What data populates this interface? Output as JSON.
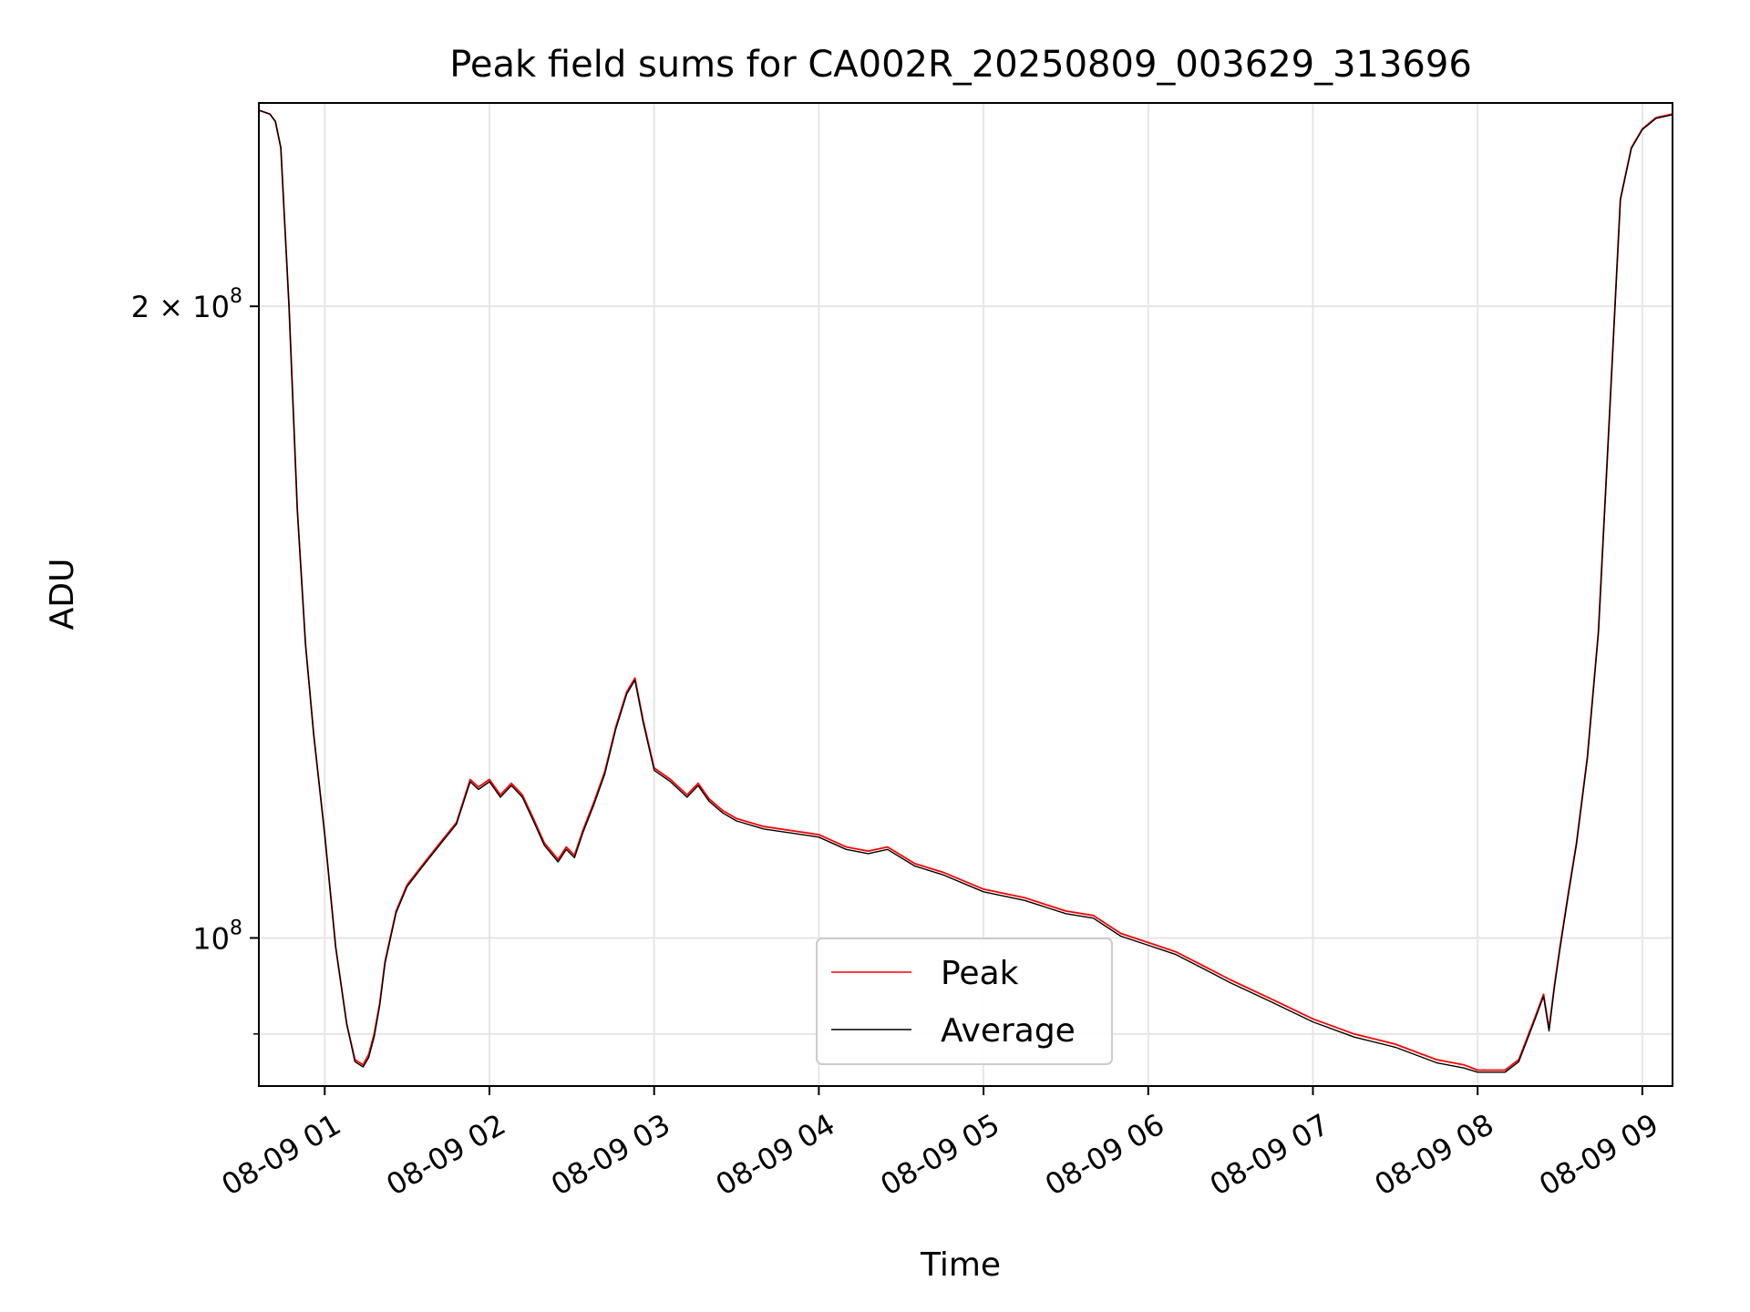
{
  "chart_data": {
    "type": "line",
    "title": "Peak field sums for CA002R_20250809_003629_313696",
    "xlabel": "Time",
    "ylabel": "ADU",
    "x_range": [
      "2025-08-09 00:36",
      "2025-08-09 09:11"
    ],
    "y_scale": "log",
    "y_range": [
      85000000,
      250000000
    ],
    "grid": true,
    "legend_position": "lower-center",
    "x_ticks": [
      {
        "value": "2025-08-09 01:00",
        "label": "08-09 01"
      },
      {
        "value": "2025-08-09 02:00",
        "label": "08-09 02"
      },
      {
        "value": "2025-08-09 03:00",
        "label": "08-09 03"
      },
      {
        "value": "2025-08-09 04:00",
        "label": "08-09 04"
      },
      {
        "value": "2025-08-09 05:00",
        "label": "08-09 05"
      },
      {
        "value": "2025-08-09 06:00",
        "label": "08-09 06"
      },
      {
        "value": "2025-08-09 07:00",
        "label": "08-09 07"
      },
      {
        "value": "2025-08-09 08:00",
        "label": "08-09 08"
      },
      {
        "value": "2025-08-09 09:00",
        "label": "08-09 09"
      }
    ],
    "y_major_ticks": [
      {
        "value": 100000000,
        "base": "10",
        "exp": "8",
        "coef": ""
      },
      {
        "value": 200000000,
        "base": "10",
        "exp": "8",
        "coef": "2 × "
      }
    ],
    "y_minor_grid": [
      90000000
    ],
    "series": [
      {
        "name": "Peak",
        "color": "#ff0000",
        "x": [
          "2025-08-09 00:36",
          "2025-08-09 00:40",
          "2025-08-09 00:42",
          "2025-08-09 00:44",
          "2025-08-09 00:47",
          "2025-08-09 00:50",
          "2025-08-09 00:53",
          "2025-08-09 00:56",
          "2025-08-09 01:00",
          "2025-08-09 01:04",
          "2025-08-09 01:08",
          "2025-08-09 01:11",
          "2025-08-09 01:14",
          "2025-08-09 01:16",
          "2025-08-09 01:18",
          "2025-08-09 01:20",
          "2025-08-09 01:22",
          "2025-08-09 01:26",
          "2025-08-09 01:30",
          "2025-08-09 01:36",
          "2025-08-09 01:42",
          "2025-08-09 01:48",
          "2025-08-09 01:53",
          "2025-08-09 01:56",
          "2025-08-09 02:00",
          "2025-08-09 02:04",
          "2025-08-09 02:08",
          "2025-08-09 02:12",
          "2025-08-09 02:16",
          "2025-08-09 02:20",
          "2025-08-09 02:25",
          "2025-08-09 02:28",
          "2025-08-09 02:31",
          "2025-08-09 02:34",
          "2025-08-09 02:38",
          "2025-08-09 02:42",
          "2025-08-09 02:46",
          "2025-08-09 02:50",
          "2025-08-09 02:53",
          "2025-08-09 02:56",
          "2025-08-09 03:00",
          "2025-08-09 03:06",
          "2025-08-09 03:12",
          "2025-08-09 03:16",
          "2025-08-09 03:20",
          "2025-08-09 03:25",
          "2025-08-09 03:30",
          "2025-08-09 03:40",
          "2025-08-09 03:50",
          "2025-08-09 04:00",
          "2025-08-09 04:10",
          "2025-08-09 04:18",
          "2025-08-09 04:25",
          "2025-08-09 04:35",
          "2025-08-09 04:45",
          "2025-08-09 05:00",
          "2025-08-09 05:15",
          "2025-08-09 05:30",
          "2025-08-09 05:40",
          "2025-08-09 05:50",
          "2025-08-09 06:00",
          "2025-08-09 06:10",
          "2025-08-09 06:20",
          "2025-08-09 06:30",
          "2025-08-09 06:45",
          "2025-08-09 07:00",
          "2025-08-09 07:15",
          "2025-08-09 07:30",
          "2025-08-09 07:45",
          "2025-08-09 07:55",
          "2025-08-09 08:00",
          "2025-08-09 08:05",
          "2025-08-09 08:10",
          "2025-08-09 08:15",
          "2025-08-09 08:20",
          "2025-08-09 08:24",
          "2025-08-09 08:26",
          "2025-08-09 08:28",
          "2025-08-09 08:30",
          "2025-08-09 08:33",
          "2025-08-09 08:36",
          "2025-08-09 08:40",
          "2025-08-09 08:44",
          "2025-08-09 08:48",
          "2025-08-09 08:52",
          "2025-08-09 08:56",
          "2025-08-09 09:00",
          "2025-08-09 09:05",
          "2025-08-09 09:11"
        ],
        "y": [
          248000000,
          247000000,
          245000000,
          238000000,
          200000000,
          160000000,
          138000000,
          125000000,
          112000000,
          99000000,
          91000000,
          87500000,
          87000000,
          88000000,
          90000000,
          93000000,
          97500000,
          103000000,
          106000000,
          108500000,
          111000000,
          113500000,
          119000000,
          118000000,
          119000000,
          117000000,
          118500000,
          117000000,
          114000000,
          111000000,
          109000000,
          110500000,
          109500000,
          112500000,
          116000000,
          120000000,
          126000000,
          131000000,
          133000000,
          127000000,
          120500000,
          119000000,
          117000000,
          118500000,
          116500000,
          115000000,
          114000000,
          113000000,
          112500000,
          112000000,
          110500000,
          110000000,
          110500000,
          108500000,
          107500000,
          105500000,
          104500000,
          103000000,
          102500000,
          100500000,
          99500000,
          98500000,
          97000000,
          95500000,
          93500000,
          91500000,
          90000000,
          89000000,
          87500000,
          87000000,
          86500000,
          86500000,
          86500000,
          87500000,
          91000000,
          94000000,
          90500000,
          95000000,
          99000000,
          105000000,
          111000000,
          122000000,
          140000000,
          177000000,
          225000000,
          238000000,
          243000000,
          246000000,
          247000000
        ]
      },
      {
        "name": "Average",
        "color": "#000000",
        "x": [
          "2025-08-09 00:36",
          "2025-08-09 00:40",
          "2025-08-09 00:42",
          "2025-08-09 00:44",
          "2025-08-09 00:47",
          "2025-08-09 00:50",
          "2025-08-09 00:53",
          "2025-08-09 00:56",
          "2025-08-09 01:00",
          "2025-08-09 01:04",
          "2025-08-09 01:08",
          "2025-08-09 01:11",
          "2025-08-09 01:14",
          "2025-08-09 01:16",
          "2025-08-09 01:18",
          "2025-08-09 01:20",
          "2025-08-09 01:22",
          "2025-08-09 01:26",
          "2025-08-09 01:30",
          "2025-08-09 01:36",
          "2025-08-09 01:42",
          "2025-08-09 01:48",
          "2025-08-09 01:53",
          "2025-08-09 01:56",
          "2025-08-09 02:00",
          "2025-08-09 02:04",
          "2025-08-09 02:08",
          "2025-08-09 02:12",
          "2025-08-09 02:16",
          "2025-08-09 02:20",
          "2025-08-09 02:25",
          "2025-08-09 02:28",
          "2025-08-09 02:31",
          "2025-08-09 02:34",
          "2025-08-09 02:38",
          "2025-08-09 02:42",
          "2025-08-09 02:46",
          "2025-08-09 02:50",
          "2025-08-09 02:53",
          "2025-08-09 02:56",
          "2025-08-09 03:00",
          "2025-08-09 03:06",
          "2025-08-09 03:12",
          "2025-08-09 03:16",
          "2025-08-09 03:20",
          "2025-08-09 03:25",
          "2025-08-09 03:30",
          "2025-08-09 03:40",
          "2025-08-09 03:50",
          "2025-08-09 04:00",
          "2025-08-09 04:10",
          "2025-08-09 04:18",
          "2025-08-09 04:25",
          "2025-08-09 04:35",
          "2025-08-09 04:45",
          "2025-08-09 05:00",
          "2025-08-09 05:15",
          "2025-08-09 05:30",
          "2025-08-09 05:40",
          "2025-08-09 05:50",
          "2025-08-09 06:00",
          "2025-08-09 06:10",
          "2025-08-09 06:20",
          "2025-08-09 06:30",
          "2025-08-09 06:45",
          "2025-08-09 07:00",
          "2025-08-09 07:15",
          "2025-08-09 07:30",
          "2025-08-09 07:45",
          "2025-08-09 07:55",
          "2025-08-09 08:00",
          "2025-08-09 08:05",
          "2025-08-09 08:10",
          "2025-08-09 08:15",
          "2025-08-09 08:20",
          "2025-08-09 08:24",
          "2025-08-09 08:26",
          "2025-08-09 08:28",
          "2025-08-09 08:30",
          "2025-08-09 08:33",
          "2025-08-09 08:36",
          "2025-08-09 08:40",
          "2025-08-09 08:44",
          "2025-08-09 08:48",
          "2025-08-09 08:52",
          "2025-08-09 08:56",
          "2025-08-09 09:00",
          "2025-08-09 09:05",
          "2025-08-09 09:11"
        ],
        "y": [
          248000000,
          247000000,
          245000000,
          238000000,
          200000000,
          160000000,
          138000000,
          125000000,
          112000000,
          99000000,
          91000000,
          87300000,
          86800000,
          87700000,
          89700000,
          92800000,
          97300000,
          102800000,
          105800000,
          108300000,
          110800000,
          113300000,
          118700000,
          117700000,
          118700000,
          116700000,
          118200000,
          116700000,
          113700000,
          110700000,
          108700000,
          110200000,
          109200000,
          112200000,
          115700000,
          119700000,
          125700000,
          130700000,
          132700000,
          126700000,
          120200000,
          118700000,
          116700000,
          118200000,
          116200000,
          114700000,
          113700000,
          112700000,
          112200000,
          111700000,
          110200000,
          109700000,
          110200000,
          108200000,
          107200000,
          105200000,
          104200000,
          102700000,
          102200000,
          100200000,
          99200000,
          98200000,
          96700000,
          95200000,
          93200000,
          91200000,
          89700000,
          88700000,
          87200000,
          86700000,
          86300000,
          86300000,
          86300000,
          87300000,
          90800000,
          93800000,
          90300000,
          94800000,
          98800000,
          104800000,
          110800000,
          121800000,
          139800000,
          176800000,
          224800000,
          237800000,
          242800000,
          245800000,
          246800000
        ]
      }
    ]
  }
}
